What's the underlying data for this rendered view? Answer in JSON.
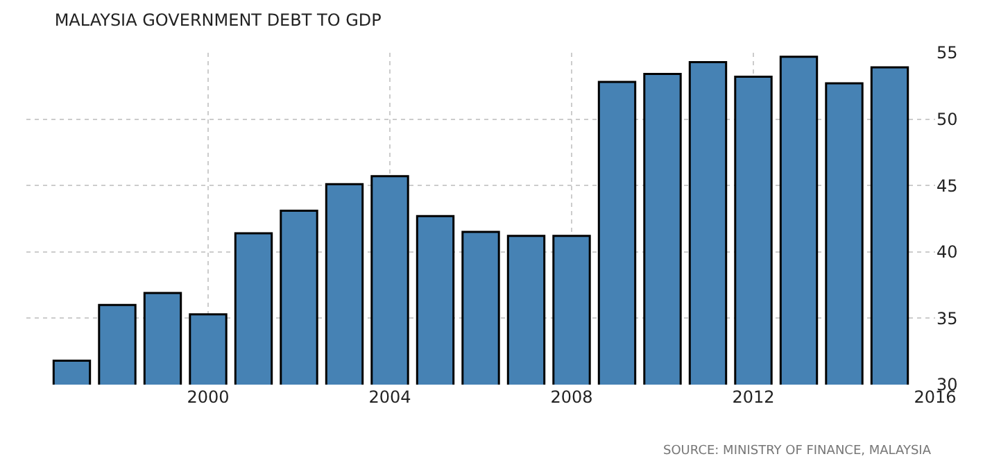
{
  "chart_data": {
    "type": "bar",
    "title": "MALAYSIA GOVERNMENT DEBT TO GDP",
    "x": [
      1997,
      1998,
      1999,
      2000,
      2001,
      2002,
      2003,
      2004,
      2005,
      2006,
      2007,
      2008,
      2009,
      2010,
      2011,
      2012,
      2013,
      2014,
      2015
    ],
    "values": [
      31.8,
      36.0,
      36.9,
      35.3,
      41.4,
      43.1,
      45.1,
      45.7,
      42.7,
      41.5,
      41.2,
      41.2,
      52.8,
      53.4,
      54.3,
      53.2,
      54.7,
      52.7,
      53.9
    ],
    "color": "#4682b4",
    "xlim": [
      1996,
      2016
    ],
    "xticks": [
      2000,
      2004,
      2008,
      2012,
      2016
    ],
    "ylim": [
      30,
      55
    ],
    "yticks": [
      30,
      35,
      40,
      45,
      50,
      55
    ],
    "grid": true,
    "annotations": [
      "SOURCE: MINISTRY OF FINANCE, MALAYSIA"
    ]
  }
}
